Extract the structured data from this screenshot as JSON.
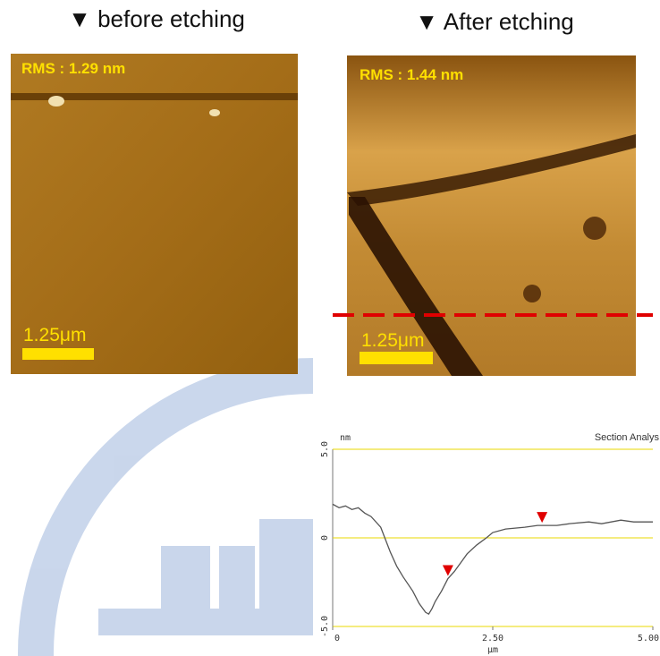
{
  "panels": [
    {
      "heading": "▼ before etching",
      "rms": "RMS : 1.29 nm",
      "scale": "1.25μm"
    },
    {
      "heading": "▼ After etching",
      "rms": "RMS : 1.44 nm",
      "scale": "1.25μm"
    }
  ],
  "chart_data": {
    "type": "line",
    "title": "Section Analys",
    "x_label": "μm",
    "y_label": "nm",
    "color": "#555555",
    "zero_line": true,
    "x": [
      0,
      0.1,
      0.2,
      0.3,
      0.4,
      0.5,
      0.6,
      0.75,
      0.9,
      1.0,
      1.1,
      1.25,
      1.35,
      1.45,
      1.5,
      1.55,
      1.6,
      1.7,
      1.8,
      1.9,
      2.0,
      2.1,
      2.25,
      2.4,
      2.5,
      2.7,
      3.0,
      3.2,
      3.5,
      3.7,
      4.0,
      4.2,
      4.5,
      4.7,
      5.0
    ],
    "values": [
      1.9,
      1.7,
      1.8,
      1.6,
      1.7,
      1.4,
      1.2,
      0.6,
      -0.8,
      -1.6,
      -2.2,
      -3.0,
      -3.7,
      -4.2,
      -4.3,
      -4.0,
      -3.6,
      -3.0,
      -2.3,
      -1.9,
      -1.4,
      -0.9,
      -0.4,
      0.0,
      0.3,
      0.5,
      0.6,
      0.7,
      0.7,
      0.8,
      0.9,
      0.8,
      1.0,
      0.9,
      0.9
    ],
    "markers": {
      "color": "#e00000",
      "x": [
        1.8,
        3.27
      ],
      "values": [
        -2.3,
        0.7
      ]
    },
    "xlim": [
      0,
      5
    ],
    "ylim": [
      -5,
      5
    ],
    "xticks": [
      0,
      {
        "value": 2.5,
        "label": "2.50"
      },
      {
        "value": 5,
        "label": "5.00"
      }
    ],
    "yticks": [
      {
        "value": 5,
        "label": "5.0"
      },
      0,
      {
        "value": -5,
        "label": "-5.0"
      }
    ]
  }
}
